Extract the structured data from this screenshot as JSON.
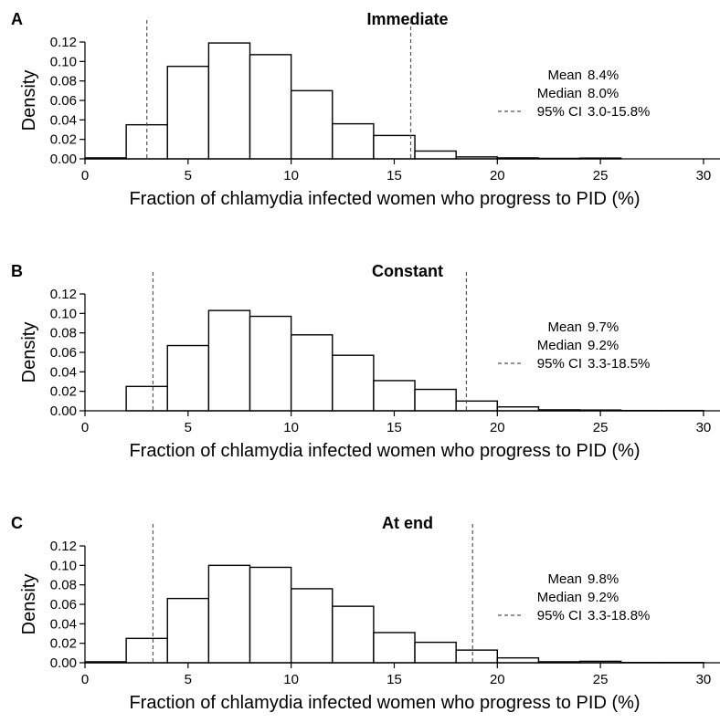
{
  "chart_data": [
    {
      "type": "bar",
      "panel": "A",
      "title": "Immediate",
      "xlabel": "Fraction of chlamydia infected women who progress to PID (%)",
      "ylabel": "Density",
      "xlim": [
        0,
        30.8
      ],
      "ylim": [
        0,
        0.12
      ],
      "xticks": [
        "0",
        "5",
        "10",
        "15",
        "20",
        "25",
        "30"
      ],
      "yticks": [
        "0.00",
        "0.02",
        "0.04",
        "0.06",
        "0.08",
        "0.10",
        "0.12"
      ],
      "bin_width": 2,
      "bins": [
        {
          "x0": 0,
          "x1": 2,
          "value": 0.001
        },
        {
          "x0": 2,
          "x1": 4,
          "value": 0.035
        },
        {
          "x0": 4,
          "x1": 6,
          "value": 0.095
        },
        {
          "x0": 6,
          "x1": 8,
          "value": 0.119
        },
        {
          "x0": 8,
          "x1": 10,
          "value": 0.107
        },
        {
          "x0": 10,
          "x1": 12,
          "value": 0.07
        },
        {
          "x0": 12,
          "x1": 14,
          "value": 0.036
        },
        {
          "x0": 14,
          "x1": 16,
          "value": 0.024
        },
        {
          "x0": 16,
          "x1": 18,
          "value": 0.008
        },
        {
          "x0": 18,
          "x1": 20,
          "value": 0.002
        },
        {
          "x0": 20,
          "x1": 22,
          "value": 0.001
        },
        {
          "x0": 22,
          "x1": 24,
          "value": 0.0005
        },
        {
          "x0": 24,
          "x1": 26,
          "value": 0.0008
        }
      ],
      "ci_lines": [
        3.0,
        15.8
      ],
      "legend": {
        "placement": "right",
        "rows": [
          {
            "label": "Mean",
            "value": "8.4%"
          },
          {
            "label": "Median",
            "value": "8.0%"
          },
          {
            "label": "95% CI",
            "value": "3.0-15.8%",
            "dashed": true
          }
        ]
      }
    },
    {
      "type": "bar",
      "panel": "B",
      "title": "Constant",
      "xlabel": "Fraction of chlamydia infected women who progress to PID (%)",
      "ylabel": "Density",
      "xlim": [
        0,
        30.8
      ],
      "ylim": [
        0,
        0.12
      ],
      "xticks": [
        "0",
        "5",
        "10",
        "15",
        "20",
        "25",
        "30"
      ],
      "yticks": [
        "0.00",
        "0.02",
        "0.04",
        "0.06",
        "0.08",
        "0.10",
        "0.12"
      ],
      "bin_width": 2,
      "bins": [
        {
          "x0": 0,
          "x1": 2,
          "value": 0.0
        },
        {
          "x0": 2,
          "x1": 4,
          "value": 0.025
        },
        {
          "x0": 4,
          "x1": 6,
          "value": 0.067
        },
        {
          "x0": 6,
          "x1": 8,
          "value": 0.103
        },
        {
          "x0": 8,
          "x1": 10,
          "value": 0.097
        },
        {
          "x0": 10,
          "x1": 12,
          "value": 0.078
        },
        {
          "x0": 12,
          "x1": 14,
          "value": 0.057
        },
        {
          "x0": 14,
          "x1": 16,
          "value": 0.031
        },
        {
          "x0": 16,
          "x1": 18,
          "value": 0.022
        },
        {
          "x0": 18,
          "x1": 20,
          "value": 0.01
        },
        {
          "x0": 20,
          "x1": 22,
          "value": 0.004
        },
        {
          "x0": 22,
          "x1": 24,
          "value": 0.001
        },
        {
          "x0": 24,
          "x1": 26,
          "value": 0.0008
        },
        {
          "x0": 26,
          "x1": 28,
          "value": 0.0003
        },
        {
          "x0": 28,
          "x1": 30,
          "value": 0.0003
        }
      ],
      "ci_lines": [
        3.3,
        18.5
      ],
      "legend": {
        "placement": "right",
        "rows": [
          {
            "label": "Mean",
            "value": "9.7%"
          },
          {
            "label": "Median",
            "value": "9.2%"
          },
          {
            "label": "95% CI",
            "value": "3.3-18.5%",
            "dashed": true
          }
        ]
      }
    },
    {
      "type": "bar",
      "panel": "C",
      "title": "At end",
      "xlabel": "Fraction of chlamydia infected women who progress to PID (%)",
      "ylabel": "Density",
      "xlim": [
        0,
        30.8
      ],
      "ylim": [
        0,
        0.12
      ],
      "xticks": [
        "0",
        "5",
        "10",
        "15",
        "20",
        "25",
        "30"
      ],
      "yticks": [
        "0.00",
        "0.02",
        "0.04",
        "0.06",
        "0.08",
        "0.10",
        "0.12"
      ],
      "bin_width": 2,
      "bins": [
        {
          "x0": 0,
          "x1": 2,
          "value": 0.001
        },
        {
          "x0": 2,
          "x1": 4,
          "value": 0.025
        },
        {
          "x0": 4,
          "x1": 6,
          "value": 0.066
        },
        {
          "x0": 6,
          "x1": 8,
          "value": 0.1
        },
        {
          "x0": 8,
          "x1": 10,
          "value": 0.098
        },
        {
          "x0": 10,
          "x1": 12,
          "value": 0.076
        },
        {
          "x0": 12,
          "x1": 14,
          "value": 0.058
        },
        {
          "x0": 14,
          "x1": 16,
          "value": 0.031
        },
        {
          "x0": 16,
          "x1": 18,
          "value": 0.021
        },
        {
          "x0": 18,
          "x1": 20,
          "value": 0.013
        },
        {
          "x0": 20,
          "x1": 22,
          "value": 0.005
        },
        {
          "x0": 22,
          "x1": 24,
          "value": 0.001
        },
        {
          "x0": 24,
          "x1": 26,
          "value": 0.0015
        },
        {
          "x0": 26,
          "x1": 28,
          "value": 0.0003
        },
        {
          "x0": 28,
          "x1": 30,
          "value": 0.0003
        }
      ],
      "ci_lines": [
        3.3,
        18.8
      ],
      "legend": {
        "placement": "right",
        "rows": [
          {
            "label": "Mean",
            "value": "9.8%"
          },
          {
            "label": "Median",
            "value": "9.2%"
          },
          {
            "label": "95% CI",
            "value": "3.3-18.8%",
            "dashed": true
          }
        ]
      }
    }
  ]
}
